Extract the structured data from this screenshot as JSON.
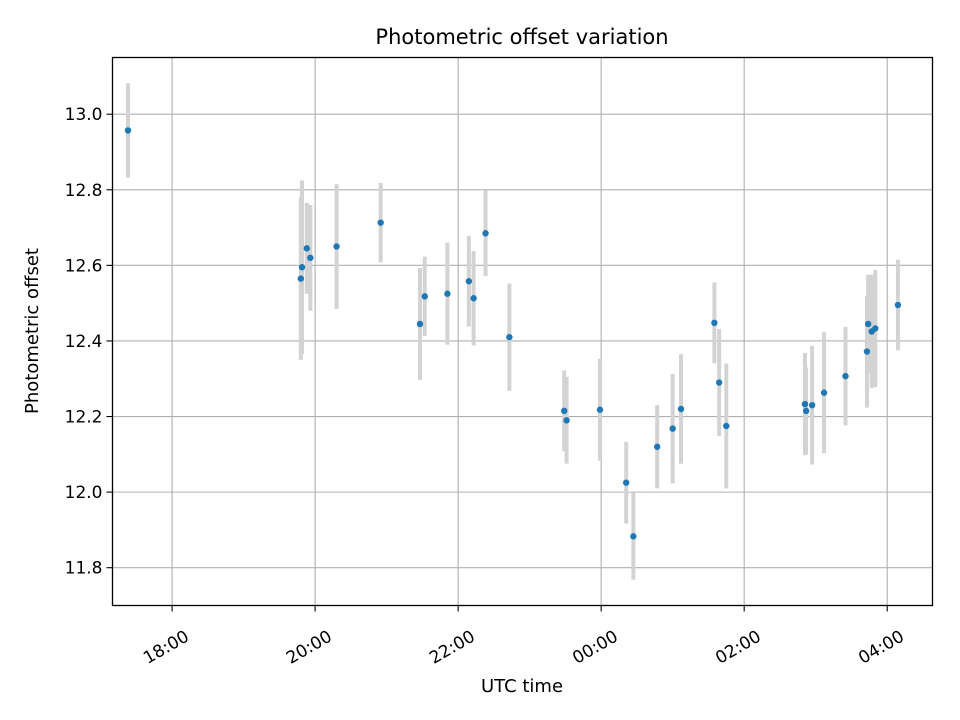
{
  "chart_data": {
    "type": "scatter",
    "title": "Photometric offset variation",
    "xlabel": "UTC time",
    "ylabel": "Photometric offset",
    "xlim": [
      "17:10",
      "28:38"
    ],
    "ylim": [
      11.7,
      13.15
    ],
    "xticks": [
      "18:00",
      "20:00",
      "22:00",
      "00:00",
      "02:00",
      "04:00"
    ],
    "yticks": [
      "11.8",
      "12.0",
      "12.2",
      "12.4",
      "12.6",
      "12.8",
      "13.0"
    ],
    "grid": true,
    "error_bars": true,
    "series": [
      {
        "points": [
          {
            "x": "17:23",
            "y": 12.957,
            "err": 0.125
          },
          {
            "x": "19:48",
            "y": 12.565,
            "err": 0.215
          },
          {
            "x": "19:49",
            "y": 12.595,
            "err": 0.23
          },
          {
            "x": "19:53",
            "y": 12.645,
            "err": 0.12
          },
          {
            "x": "19:56",
            "y": 12.62,
            "err": 0.14
          },
          {
            "x": "20:18",
            "y": 12.65,
            "err": 0.165
          },
          {
            "x": "20:55",
            "y": 12.713,
            "err": 0.105
          },
          {
            "x": "21:28",
            "y": 12.445,
            "err": 0.148
          },
          {
            "x": "21:32",
            "y": 12.518,
            "err": 0.105
          },
          {
            "x": "21:51",
            "y": 12.525,
            "err": 0.135
          },
          {
            "x": "22:09",
            "y": 12.558,
            "err": 0.12
          },
          {
            "x": "22:13",
            "y": 12.513,
            "err": 0.125
          },
          {
            "x": "22:23",
            "y": 12.685,
            "err": 0.113
          },
          {
            "x": "22:43",
            "y": 12.41,
            "err": 0.142
          },
          {
            "x": "23:29",
            "y": 12.215,
            "err": 0.107
          },
          {
            "x": "23:31",
            "y": 12.19,
            "err": 0.115
          },
          {
            "x": "23:59",
            "y": 12.218,
            "err": 0.135
          },
          {
            "x": "00:21",
            "y": 12.025,
            "err": 0.108
          },
          {
            "x": "00:27",
            "y": 11.883,
            "err": 0.115
          },
          {
            "x": "00:47",
            "y": 12.12,
            "err": 0.11
          },
          {
            "x": "01:00",
            "y": 12.168,
            "err": 0.145
          },
          {
            "x": "01:07",
            "y": 12.22,
            "err": 0.145
          },
          {
            "x": "01:35",
            "y": 12.448,
            "err": 0.107
          },
          {
            "x": "01:39",
            "y": 12.29,
            "err": 0.142
          },
          {
            "x": "01:45",
            "y": 12.175,
            "err": 0.165
          },
          {
            "x": "02:51",
            "y": 12.233,
            "err": 0.135
          },
          {
            "x": "02:52",
            "y": 12.215,
            "err": 0.115
          },
          {
            "x": "02:57",
            "y": 12.23,
            "err": 0.157
          },
          {
            "x": "03:07",
            "y": 12.263,
            "err": 0.16
          },
          {
            "x": "03:25",
            "y": 12.307,
            "err": 0.13
          },
          {
            "x": "03:43",
            "y": 12.372,
            "err": 0.148
          },
          {
            "x": "03:44",
            "y": 12.445,
            "err": 0.13
          },
          {
            "x": "03:47",
            "y": 12.425,
            "err": 0.15
          },
          {
            "x": "03:50",
            "y": 12.433,
            "err": 0.155
          },
          {
            "x": "04:09",
            "y": 12.495,
            "err": 0.12
          }
        ]
      }
    ]
  },
  "colors": {
    "marker": "#1f77b4",
    "error_bar": "#d3d3d3",
    "grid": "#b0b0b0",
    "axes": "#000000"
  }
}
